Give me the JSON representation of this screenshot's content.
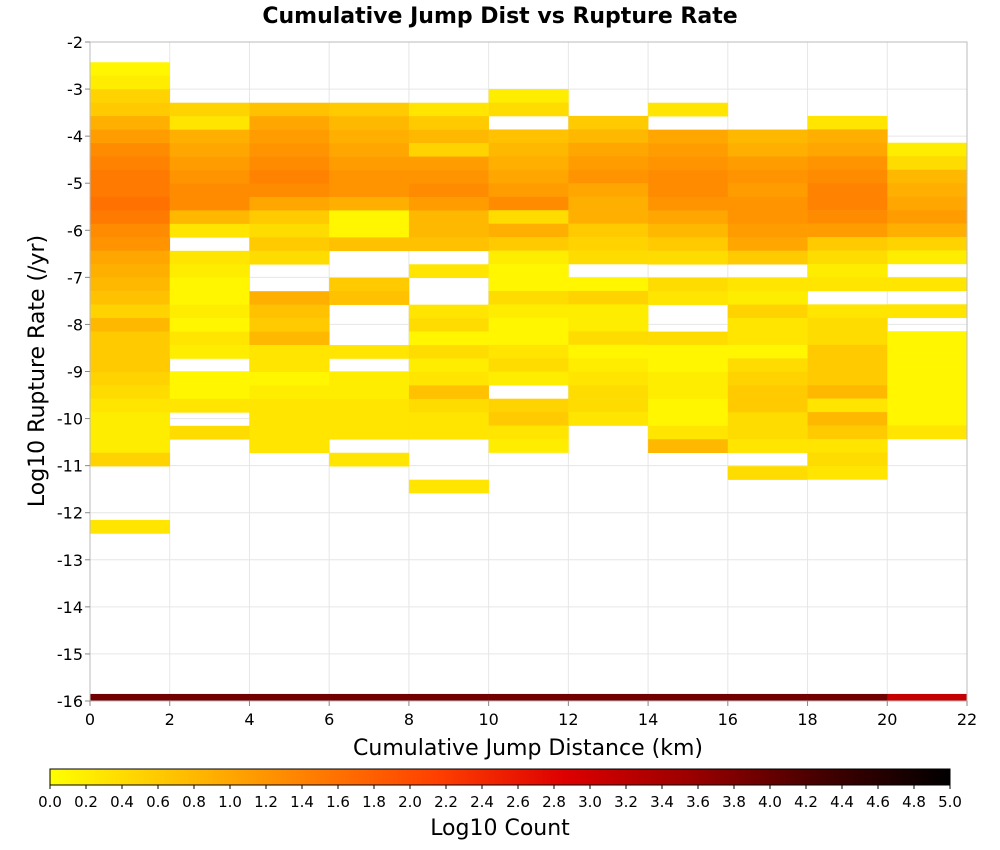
{
  "chart_data": {
    "type": "heatmap",
    "title": "Cumulative Jump Dist vs Rupture Rate",
    "xlabel": "Cumulative Jump Distance (km)",
    "ylabel": "Log10 Rupture Rate (/yr)",
    "xlim": [
      0,
      22
    ],
    "ylim": [
      -16,
      -2
    ],
    "x_ticks": [
      "0",
      "2",
      "4",
      "6",
      "8",
      "10",
      "12",
      "14",
      "16",
      "18",
      "20",
      "22"
    ],
    "y_ticks": [
      "-2",
      "-3",
      "-4",
      "-5",
      "-6",
      "-7",
      "-8",
      "-9",
      "-10",
      "-11",
      "-12",
      "-13",
      "-14",
      "-15",
      "-16"
    ],
    "x_bin_width": 2,
    "y_bin_height": 0.286,
    "grid": true,
    "colorbar": {
      "label": "Log10 Count",
      "min": 0.0,
      "max": 5.0,
      "ticks": [
        "0.0",
        "0.2",
        "0.4",
        "0.6",
        "0.8",
        "1.0",
        "1.2",
        "1.4",
        "1.6",
        "1.8",
        "2.0",
        "2.2",
        "2.4",
        "2.6",
        "2.8",
        "3.0",
        "3.2",
        "3.4",
        "3.6",
        "3.8",
        "4.0",
        "4.2",
        "4.4",
        "4.6",
        "4.8",
        "5.0"
      ],
      "colors": [
        "#ffff00",
        "#ffc000",
        "#ff8000",
        "#ff4000",
        "#dd0000",
        "#990000",
        "#440000",
        "#000000"
      ]
    },
    "columns": [
      {
        "x0": 0,
        "y_start": -2.43,
        "values": [
          0.1,
          0.2,
          0.5,
          0.6,
          0.9,
          1.1,
          1.3,
          1.4,
          1.5,
          1.5,
          1.6,
          1.5,
          1.3,
          1.2,
          1.0,
          0.9,
          0.8,
          0.7,
          0.5,
          0.8,
          0.6,
          0.6,
          0.6,
          0.5,
          0.4,
          0.3,
          0.2,
          0.2,
          0.2,
          0.5,
          null,
          null,
          null,
          null,
          0.3
        ]
      },
      {
        "x0": 2,
        "y_start": -3.29,
        "values": [
          0.5,
          0.3,
          0.9,
          1.0,
          1.1,
          1.2,
          1.3,
          1.3,
          0.8,
          0.3,
          null,
          0.3,
          0.2,
          0.1,
          0.1,
          0.2,
          0.1,
          0.3,
          0.2,
          null,
          0.1,
          0.1,
          0.3,
          null,
          0.4
        ]
      },
      {
        "x0": 4,
        "y_start": -3.29,
        "values": [
          0.7,
          1.0,
          1.1,
          1.2,
          1.3,
          1.4,
          1.3,
          1.0,
          0.6,
          0.4,
          0.6,
          0.4,
          null,
          null,
          0.9,
          0.7,
          0.6,
          0.8,
          0.3,
          0.3,
          0.1,
          0.2,
          0.3,
          0.3,
          0.3,
          0.3
        ]
      },
      {
        "x0": 6,
        "y_start": -3.29,
        "values": [
          0.6,
          0.8,
          0.9,
          1.0,
          1.1,
          1.2,
          1.2,
          0.9,
          0.1,
          0.1,
          0.7,
          null,
          null,
          0.6,
          0.7,
          null,
          null,
          null,
          0.3,
          null,
          0.2,
          0.2,
          0.3,
          0.3,
          0.3,
          null,
          0.3
        ]
      },
      {
        "x0": 8,
        "y_start": -3.29,
        "values": [
          0.3,
          0.6,
          0.8,
          0.5,
          1.1,
          1.2,
          1.3,
          1.1,
          0.8,
          0.8,
          0.7,
          null,
          0.3,
          null,
          null,
          0.3,
          0.4,
          0.1,
          0.4,
          0.2,
          0.3,
          0.7,
          0.4,
          0.3,
          0.3,
          null,
          null,
          null,
          0.3
        ]
      },
      {
        "x0": 10,
        "y_start": -3.0,
        "values": [
          0.2,
          0.4,
          null,
          0.7,
          0.8,
          0.9,
          1.0,
          1.1,
          1.3,
          0.4,
          0.9,
          0.6,
          0.2,
          0.1,
          0.1,
          0.4,
          0.2,
          0.1,
          0.1,
          0.3,
          0.4,
          0.2,
          null,
          0.5,
          0.6,
          0.3,
          0.2
        ]
      },
      {
        "x0": 12,
        "y_start": -3.57,
        "values": [
          0.6,
          0.8,
          1.0,
          1.1,
          1.2,
          1.0,
          0.9,
          0.9,
          0.6,
          0.5,
          0.4,
          null,
          0.1,
          0.5,
          0.2,
          0.2,
          0.4,
          0.1,
          0.2,
          0.3,
          0.4,
          0.4,
          0.3
        ]
      },
      {
        "x0": 14,
        "y_start": -3.29,
        "values": [
          0.3,
          null,
          1.0,
          1.1,
          1.2,
          1.3,
          1.3,
          1.2,
          1.0,
          0.8,
          0.6,
          0.4,
          null,
          0.4,
          0.3,
          null,
          null,
          0.4,
          0.1,
          0.1,
          0.2,
          0.2,
          0.1,
          0.1,
          0.3,
          0.8
        ]
      },
      {
        "x0": 16,
        "y_start": -3.86,
        "values": [
          0.8,
          0.9,
          1.1,
          1.2,
          1.1,
          1.2,
          1.2,
          1.1,
          1.0,
          0.6,
          null,
          0.3,
          0.2,
          0.5,
          0.3,
          0.3,
          0.1,
          0.4,
          0.5,
          0.6,
          0.6,
          0.4,
          0.4,
          0.3,
          null,
          0.4
        ]
      },
      {
        "x0": 18,
        "y_start": -3.57,
        "values": [
          0.3,
          0.9,
          1.0,
          1.2,
          1.3,
          1.4,
          1.4,
          1.3,
          1.1,
          0.6,
          0.4,
          0.2,
          0.3,
          null,
          0.3,
          0.4,
          0.4,
          0.6,
          0.6,
          0.6,
          0.8,
          0.3,
          0.8,
          0.6,
          0.3,
          0.4,
          0.3
        ]
      },
      {
        "x0": 20,
        "y_start": -4.14,
        "values": [
          0.2,
          0.4,
          0.8,
          0.9,
          1.0,
          1.1,
          0.9,
          0.5,
          0.2,
          null,
          0.3,
          null,
          0.3,
          null,
          0.1,
          0.1,
          0.1,
          0.1,
          0.1,
          0.1,
          0.1,
          0.3
        ]
      }
    ],
    "bottom_strip": {
      "y_from": -16.0,
      "y_to": -15.85,
      "values": [
        3.9,
        3.9,
        3.9,
        3.9,
        3.9,
        3.9,
        3.9,
        3.9,
        3.9,
        3.9,
        3.1
      ]
    }
  }
}
